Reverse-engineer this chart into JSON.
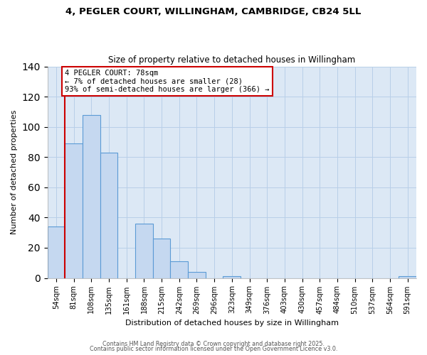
{
  "title": "4, PEGLER COURT, WILLINGHAM, CAMBRIDGE, CB24 5LL",
  "subtitle": "Size of property relative to detached houses in Willingham",
  "xlabel": "Distribution of detached houses by size in Willingham",
  "ylabel": "Number of detached properties",
  "bar_labels": [
    "54sqm",
    "81sqm",
    "108sqm",
    "135sqm",
    "161sqm",
    "188sqm",
    "215sqm",
    "242sqm",
    "269sqm",
    "296sqm",
    "323sqm",
    "349sqm",
    "376sqm",
    "403sqm",
    "430sqm",
    "457sqm",
    "484sqm",
    "510sqm",
    "537sqm",
    "564sqm",
    "591sqm"
  ],
  "bar_values": [
    34,
    89,
    108,
    83,
    0,
    36,
    26,
    11,
    4,
    0,
    1,
    0,
    0,
    0,
    0,
    0,
    0,
    0,
    0,
    0,
    1
  ],
  "bar_color": "#c5d8f0",
  "bar_edge_color": "#5b9bd5",
  "background_color": "#ffffff",
  "plot_bg_color": "#dce8f5",
  "grid_color": "#b8cfe8",
  "vline_x": 1.0,
  "vline_color": "#cc0000",
  "annotation_title": "4 PEGLER COURT: 78sqm",
  "annotation_line1": "← 7% of detached houses are smaller (28)",
  "annotation_line2": "93% of semi-detached houses are larger (366) →",
  "annotation_box_edge": "#cc0000",
  "ylim": [
    0,
    140
  ],
  "yticks": [
    0,
    20,
    40,
    60,
    80,
    100,
    120,
    140
  ],
  "footer1": "Contains HM Land Registry data © Crown copyright and database right 2025.",
  "footer2": "Contains public sector information licensed under the Open Government Licence v3.0."
}
